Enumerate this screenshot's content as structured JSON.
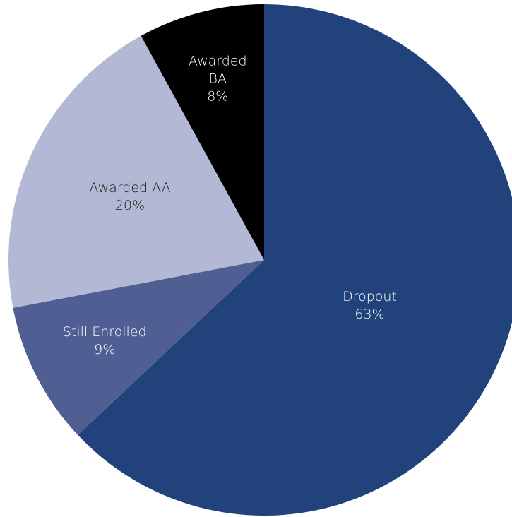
{
  "chart_data": {
    "type": "pie",
    "categories": [
      "Dropout",
      "Still Enrolled",
      "Awarded AA",
      "Awarded BA"
    ],
    "values": [
      63,
      9,
      20,
      8
    ],
    "value_labels": [
      "63%",
      "9%",
      "20%",
      "8%"
    ],
    "colors": [
      "#22427c",
      "#4f5f94",
      "#b3b9d4",
      "#000000"
    ]
  }
}
